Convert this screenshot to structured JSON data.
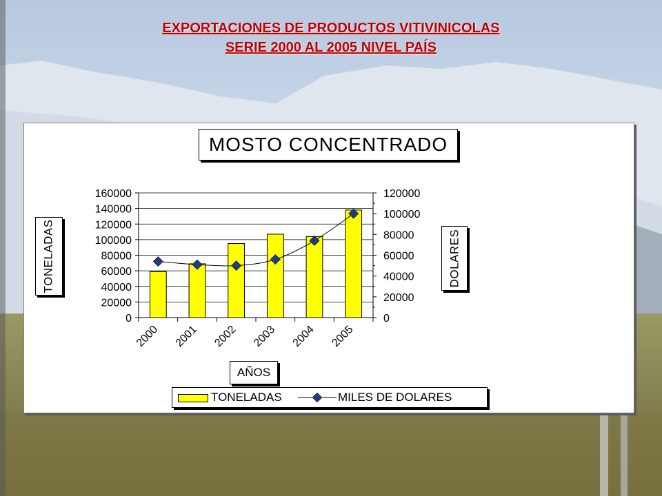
{
  "header": {
    "line1": "EXPORTACIONES DE PRODUCTOS VITIVINICOLAS",
    "line2": "SERIE  2000 AL 2005 NIVEL PAÍS"
  },
  "colors": {
    "bar": "#ffff00",
    "line": "#000000",
    "marker": "#1f3a8c",
    "heading": "#c00000"
  },
  "chart_data": {
    "type": "bar+line",
    "title": "MOSTO CONCENTRADO",
    "xlabel": "AÑOS",
    "ylabel_left": "TONELADAS",
    "ylabel_right": "DOLARES",
    "categories": [
      "2000",
      "2001",
      "2002",
      "2003",
      "2004",
      "2005"
    ],
    "ylim_left": [
      0,
      160000
    ],
    "ylim_right": [
      0,
      120000
    ],
    "yticks_left": [
      "0",
      "20000",
      "40000",
      "60000",
      "80000",
      "100000",
      "120000",
      "140000",
      "160000"
    ],
    "yticks_right": [
      "0",
      "20000",
      "40000",
      "60000",
      "80000",
      "100000",
      "120000"
    ],
    "grid": true,
    "legend_position": "bottom",
    "series": [
      {
        "name": "TONELADAS",
        "type": "bar",
        "axis": "left",
        "values": [
          59000,
          69000,
          95000,
          107000,
          104000,
          138000
        ]
      },
      {
        "name": "MILES DE DOLARES",
        "type": "line",
        "axis": "right",
        "values": [
          54000,
          51000,
          50000,
          56000,
          74000,
          100000
        ]
      }
    ]
  }
}
